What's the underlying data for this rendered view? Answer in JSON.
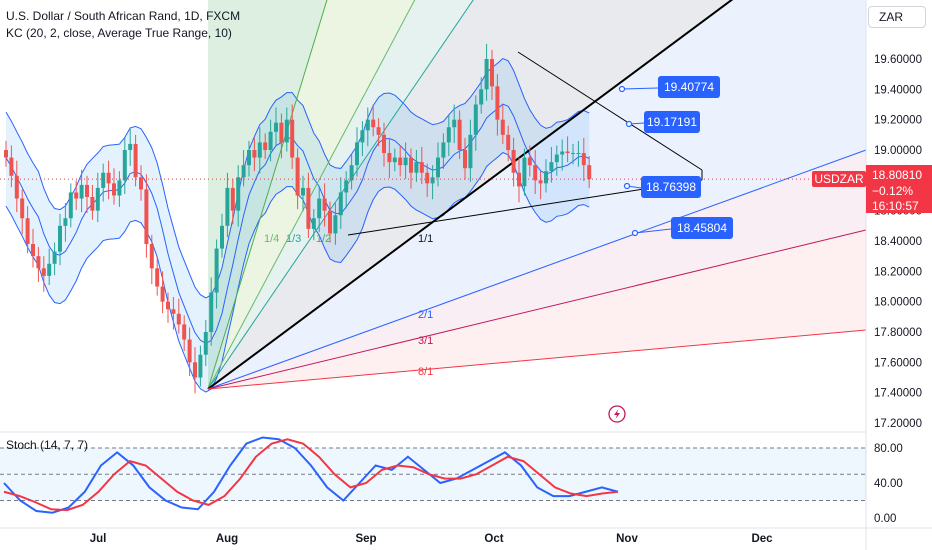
{
  "header": {
    "title": "U.S. Dollar / South African Rand, 1D, FXCM",
    "kc_legend": "KC (20, 2, close, Average True Range, 10)",
    "stoch_legend": "Stoch (14, 7, 7)",
    "currency": "ZAR"
  },
  "price_tag": {
    "symbol": "USDZAR",
    "price": "18.80810",
    "change": "−0.12%",
    "countdown": "16:10:57"
  },
  "callouts": [
    "19.40774",
    "19.17191",
    "18.76398",
    "18.45804"
  ],
  "fan_labels": [
    "1/1",
    "1/2",
    "1/3",
    "1/4",
    "2/1",
    "3/1",
    "8/1"
  ],
  "chart_data": {
    "type": "candlestick",
    "title": "U.S. Dollar / South African Rand, 1D, FXCM",
    "price_axis": [
      "19.60000",
      "19.40000",
      "19.20000",
      "19.00000",
      "18.80000",
      "18.60000",
      "18.40000",
      "18.20000",
      "18.00000",
      "17.80000",
      "17.60000",
      "17.40000",
      "17.20000"
    ],
    "price_range": [
      17.18,
      19.98
    ],
    "time_axis": [
      "Jul",
      "Aug",
      "Sep",
      "Oct",
      "Nov",
      "Dec"
    ],
    "stoch_axis": [
      "80.00",
      "40.00",
      "0.00"
    ],
    "stoch_range": [
      -5,
      100
    ],
    "last_price": 18.8081,
    "up_color": "#26a69a",
    "down_color": "#ef5350",
    "kc_color": "#2962ff",
    "stoch_k_color": "#2962ff",
    "stoch_d_color": "#f23645",
    "candle_closes": [
      18.95,
      18.83,
      18.68,
      18.55,
      18.38,
      18.3,
      18.22,
      18.17,
      18.25,
      18.33,
      18.5,
      18.55,
      18.72,
      18.68,
      18.77,
      18.69,
      18.6,
      18.75,
      18.85,
      18.78,
      18.7,
      18.8,
      19.0,
      19.04,
      18.82,
      18.74,
      18.38,
      18.22,
      18.1,
      18.0,
      17.95,
      17.92,
      17.85,
      17.75,
      17.6,
      17.5,
      17.65,
      17.8,
      18.06,
      18.35,
      18.5,
      18.75,
      18.6,
      18.82,
      18.9,
      19.0,
      18.95,
      19.05,
      19.0,
      19.12,
      19.18,
      19.05,
      19.2,
      18.95,
      18.7,
      18.75,
      18.48,
      18.55,
      18.68,
      18.6,
      18.45,
      18.57,
      18.72,
      18.8,
      18.9,
      19.05,
      19.13,
      19.2,
      19.15,
      19.1,
      18.98,
      18.92,
      18.95,
      18.9,
      18.95,
      18.85,
      18.92,
      18.85,
      18.78,
      18.82,
      18.95,
      19.05,
      19.15,
      19.2,
      19.0,
      18.88,
      19.1,
      19.3,
      19.4,
      19.6,
      19.42,
      19.2,
      19.1,
      19.0,
      18.85,
      18.76,
      18.95,
      18.9,
      18.8,
      18.78,
      18.86,
      18.92,
      18.97,
      18.99,
      18.98,
      18.98,
      18.98,
      18.9,
      18.8081
    ],
    "candle_opens": [
      19.0,
      18.95,
      18.83,
      18.68,
      18.55,
      18.38,
      18.3,
      18.22,
      18.17,
      18.25,
      18.33,
      18.5,
      18.55,
      18.72,
      18.68,
      18.77,
      18.69,
      18.6,
      18.75,
      18.85,
      18.78,
      18.7,
      18.8,
      19.0,
      19.04,
      18.82,
      18.74,
      18.38,
      18.22,
      18.1,
      18.0,
      17.95,
      17.92,
      17.85,
      17.75,
      17.6,
      17.5,
      17.65,
      17.8,
      18.06,
      18.35,
      18.5,
      18.75,
      18.6,
      18.82,
      18.9,
      19.0,
      18.95,
      19.05,
      19.0,
      19.12,
      19.18,
      19.05,
      19.2,
      18.95,
      18.7,
      18.75,
      18.48,
      18.55,
      18.68,
      18.6,
      18.45,
      18.57,
      18.72,
      18.8,
      18.9,
      19.05,
      19.13,
      19.2,
      19.15,
      19.1,
      18.98,
      18.92,
      18.95,
      18.9,
      18.95,
      18.85,
      18.92,
      18.85,
      18.78,
      18.82,
      18.95,
      19.05,
      19.15,
      19.2,
      19.0,
      18.88,
      19.1,
      19.3,
      19.4,
      19.6,
      19.42,
      19.2,
      19.1,
      19.0,
      18.85,
      18.76,
      18.95,
      18.9,
      18.8,
      18.78,
      18.86,
      18.92,
      18.97,
      18.99,
      18.98,
      18.98,
      18.98,
      18.9
    ],
    "kc_upper_start": 19.55,
    "stoch_k_sample": [
      40,
      20,
      8,
      6,
      12,
      30,
      60,
      75,
      60,
      35,
      20,
      12,
      10,
      30,
      60,
      85,
      92,
      90,
      80,
      60,
      35,
      20,
      40,
      60,
      55,
      70,
      55,
      40,
      45,
      55,
      65,
      75,
      60,
      35,
      25,
      25,
      30,
      35,
      30
    ],
    "stoch_d_sample": [
      30,
      25,
      18,
      10,
      9,
      15,
      30,
      50,
      65,
      60,
      45,
      30,
      20,
      15,
      25,
      45,
      70,
      85,
      90,
      85,
      70,
      50,
      35,
      40,
      55,
      60,
      58,
      50,
      45,
      45,
      50,
      60,
      70,
      65,
      50,
      35,
      28,
      25,
      28,
      30
    ]
  }
}
